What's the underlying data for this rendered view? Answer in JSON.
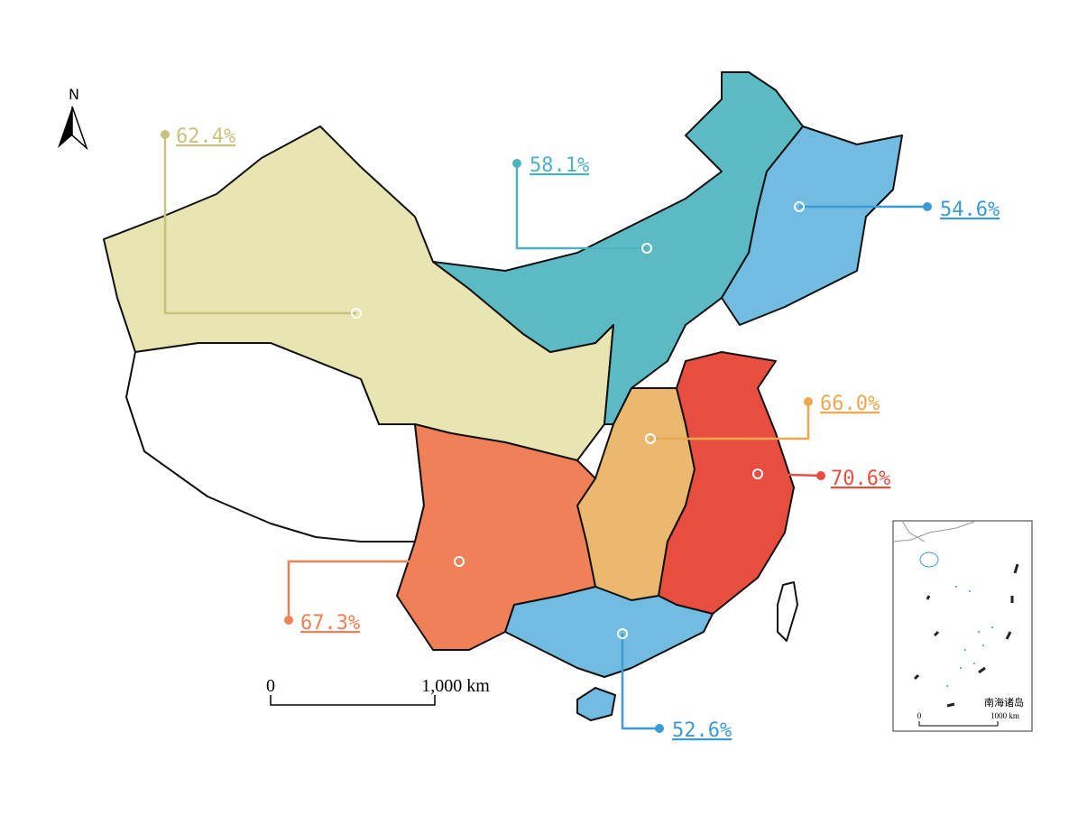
{
  "north": "N",
  "labels": [
    {
      "text": "62.4%",
      "color": "#c9c27f"
    },
    {
      "text": "58.1%",
      "color": "#4fb3bf"
    },
    {
      "text": "54.6%",
      "color": "#3a9bd5"
    },
    {
      "text": "66.0%",
      "color": "#f0a850"
    },
    {
      "text": "70.6%",
      "color": "#e84e40"
    },
    {
      "text": "67.3%",
      "color": "#f08057"
    },
    {
      "text": "52.6%",
      "color": "#3a9bd5"
    }
  ],
  "scale_bar": {
    "start": "0",
    "end": "1,000 km"
  },
  "inset": {
    "title": "南海诸岛",
    "scale_start": "0",
    "scale_end": "1000 km"
  }
}
